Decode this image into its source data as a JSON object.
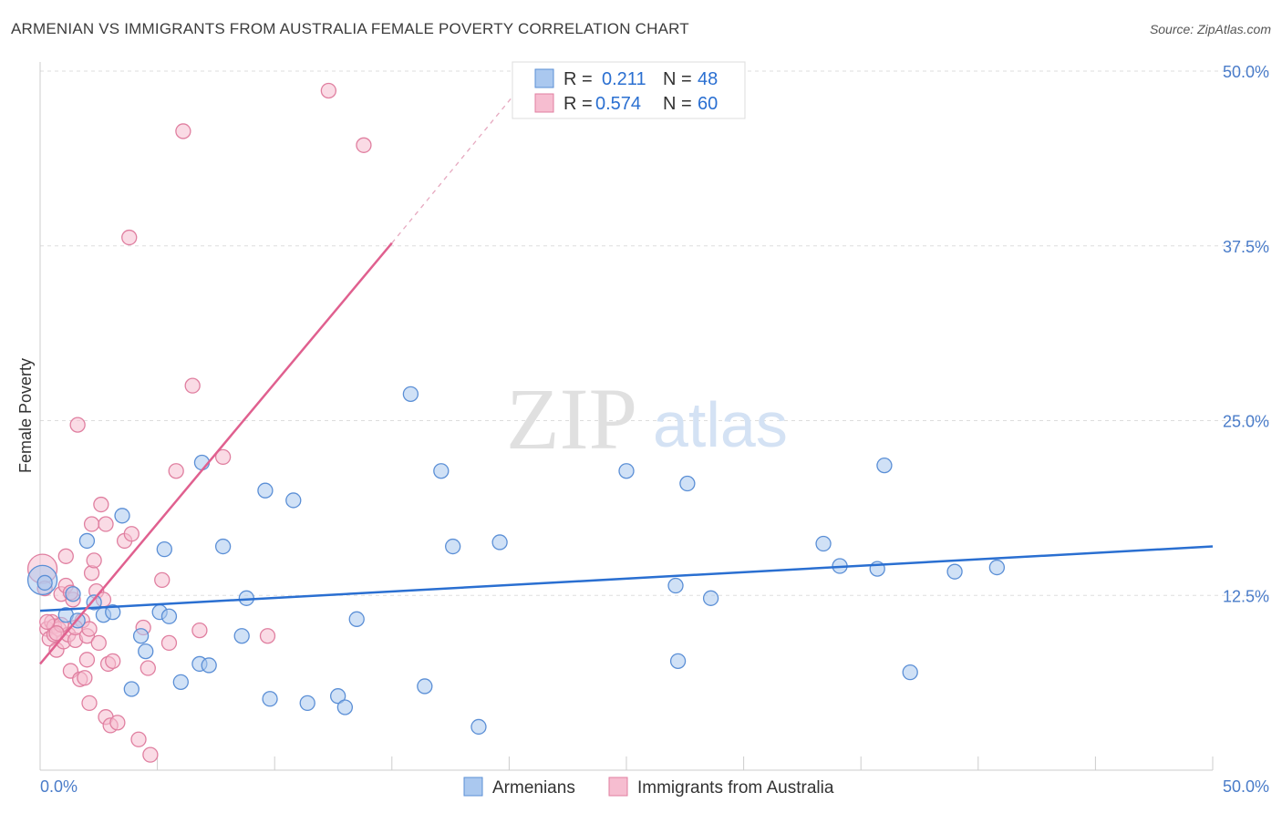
{
  "title": "ARMENIAN VS IMMIGRANTS FROM AUSTRALIA FEMALE POVERTY CORRELATION CHART",
  "source": "Source: ZipAtlas.com",
  "watermark": {
    "zip": "ZIP",
    "atlas": "atlas"
  },
  "colors": {
    "armenians_fill": "#aac8ef",
    "armenians_stroke": "#5b8fd6",
    "armenians_line": "#2a6fd1",
    "australia_fill": "#f6bdd0",
    "australia_stroke": "#e07fa0",
    "australia_line": "#e0608f",
    "tick_label": "#4a7cc9",
    "grid": "#dddddd"
  },
  "stats_legend": {
    "rows": [
      {
        "r_label": "R =",
        "r_value": "0.211",
        "n_label": "N =",
        "n_value": "48"
      },
      {
        "r_label": "R =",
        "r_value": "0.574",
        "n_label": "N =",
        "n_value": "60"
      }
    ]
  },
  "chart_data": {
    "type": "scatter",
    "title": "ARMENIAN VS IMMIGRANTS FROM AUSTRALIA FEMALE POVERTY CORRELATION CHART",
    "xlabel": "",
    "ylabel": "Female Poverty",
    "xlim": [
      0,
      50
    ],
    "ylim": [
      0,
      50
    ],
    "x_tick_labels": [
      "0.0%",
      "50.0%"
    ],
    "y_tick_labels": [
      "12.5%",
      "25.0%",
      "37.5%",
      "50.0%"
    ],
    "y_ticks": [
      12.5,
      25.0,
      37.5,
      50.0
    ],
    "grid": true,
    "legend": "bottom-center",
    "series": [
      {
        "name": "Armenians",
        "points": [
          [
            0.1,
            13.6
          ],
          [
            1.1,
            11.1
          ],
          [
            1.4,
            12.6
          ],
          [
            1.6,
            10.7
          ],
          [
            2.0,
            16.4
          ],
          [
            2.3,
            12.0
          ],
          [
            2.7,
            11.1
          ],
          [
            3.1,
            11.3
          ],
          [
            3.5,
            18.2
          ],
          [
            3.9,
            5.8
          ],
          [
            4.3,
            9.6
          ],
          [
            4.5,
            8.5
          ],
          [
            5.1,
            11.3
          ],
          [
            5.3,
            15.8
          ],
          [
            5.5,
            11.0
          ],
          [
            6.0,
            6.3
          ],
          [
            6.8,
            7.6
          ],
          [
            6.9,
            22.0
          ],
          [
            7.2,
            7.5
          ],
          [
            7.8,
            16.0
          ],
          [
            8.6,
            9.6
          ],
          [
            8.8,
            12.3
          ],
          [
            9.6,
            20.0
          ],
          [
            9.8,
            5.1
          ],
          [
            10.8,
            19.3
          ],
          [
            11.4,
            4.8
          ],
          [
            12.7,
            5.3
          ],
          [
            13.0,
            4.5
          ],
          [
            13.5,
            10.8
          ],
          [
            15.8,
            26.9
          ],
          [
            16.4,
            6.0
          ],
          [
            17.1,
            21.4
          ],
          [
            17.6,
            16.0
          ],
          [
            18.7,
            3.1
          ],
          [
            19.6,
            16.3
          ],
          [
            25.0,
            21.4
          ],
          [
            27.1,
            13.2
          ],
          [
            27.2,
            7.8
          ],
          [
            27.6,
            20.5
          ],
          [
            28.6,
            12.3
          ],
          [
            33.4,
            16.2
          ],
          [
            34.1,
            14.6
          ],
          [
            35.7,
            14.4
          ],
          [
            36.0,
            21.8
          ],
          [
            37.1,
            7.0
          ],
          [
            39.0,
            14.2
          ],
          [
            40.8,
            14.5
          ],
          [
            0.2,
            13.4
          ]
        ],
        "trend": {
          "x0": 0,
          "y0": 11.4,
          "x1": 50,
          "y1": 16.0
        }
      },
      {
        "name": "Immigrants from Australia",
        "points": [
          [
            0.1,
            14.4
          ],
          [
            0.2,
            13.0
          ],
          [
            0.3,
            10.1
          ],
          [
            0.4,
            9.4
          ],
          [
            0.5,
            10.6
          ],
          [
            0.6,
            10.3
          ],
          [
            0.7,
            8.6
          ],
          [
            0.8,
            10.1
          ],
          [
            0.9,
            12.6
          ],
          [
            1.0,
            9.2
          ],
          [
            1.1,
            13.2
          ],
          [
            1.2,
            9.7
          ],
          [
            1.3,
            7.1
          ],
          [
            1.4,
            12.2
          ],
          [
            1.5,
            9.3
          ],
          [
            1.6,
            24.7
          ],
          [
            1.7,
            6.5
          ],
          [
            1.8,
            10.7
          ],
          [
            1.9,
            6.6
          ],
          [
            2.0,
            9.6
          ],
          [
            2.0,
            7.9
          ],
          [
            2.1,
            4.8
          ],
          [
            2.2,
            14.1
          ],
          [
            2.2,
            17.6
          ],
          [
            2.3,
            15.0
          ],
          [
            2.4,
            12.8
          ],
          [
            2.5,
            9.1
          ],
          [
            2.6,
            19.0
          ],
          [
            2.7,
            12.2
          ],
          [
            2.8,
            3.8
          ],
          [
            2.8,
            17.6
          ],
          [
            2.9,
            7.6
          ],
          [
            3.0,
            3.2
          ],
          [
            3.1,
            7.8
          ],
          [
            3.3,
            3.4
          ],
          [
            3.6,
            16.4
          ],
          [
            3.8,
            38.1
          ],
          [
            3.9,
            16.9
          ],
          [
            4.2,
            2.2
          ],
          [
            4.4,
            10.2
          ],
          [
            4.6,
            7.3
          ],
          [
            4.7,
            1.1
          ],
          [
            5.2,
            13.6
          ],
          [
            5.5,
            9.1
          ],
          [
            5.8,
            21.4
          ],
          [
            6.1,
            45.7
          ],
          [
            6.5,
            27.5
          ],
          [
            6.8,
            10.0
          ],
          [
            7.8,
            22.4
          ],
          [
            9.7,
            9.6
          ],
          [
            12.3,
            48.6
          ],
          [
            13.8,
            44.7
          ],
          [
            1.5,
            10.2
          ],
          [
            0.6,
            9.7
          ],
          [
            1.1,
            15.3
          ],
          [
            0.9,
            10.4
          ],
          [
            0.3,
            10.6
          ],
          [
            2.1,
            10.1
          ],
          [
            0.7,
            9.8
          ],
          [
            1.3,
            12.7
          ]
        ],
        "trend": {
          "x0": 0,
          "y0": 7.6,
          "x1": 15,
          "y1": 37.7,
          "dash_to_x": 20.5,
          "dash_to_y": 48.9
        }
      }
    ]
  }
}
